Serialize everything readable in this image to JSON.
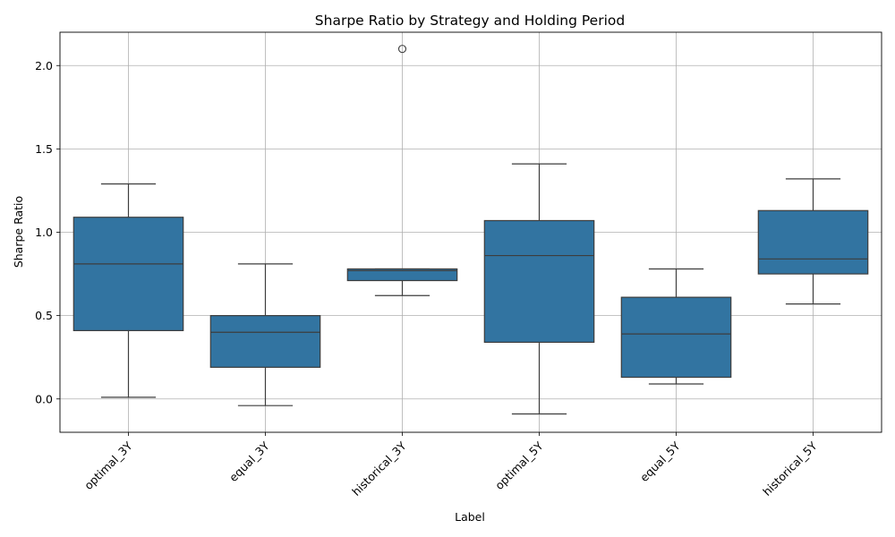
{
  "chart_data": {
    "type": "box",
    "title": "Sharpe Ratio by Strategy and Holding Period",
    "xlabel": "Label",
    "ylabel": "Sharpe Ratio",
    "ylim": [
      -0.2,
      2.2
    ],
    "yticks": [
      0.0,
      0.5,
      1.0,
      1.5,
      2.0
    ],
    "ytick_labels": [
      "0.0",
      "0.5",
      "1.0",
      "1.5",
      "2.0"
    ],
    "grid": true,
    "box_color": "#3274a1",
    "line_color": "#3d3d3d",
    "categories": [
      "optimal_3Y",
      "equal_3Y",
      "historical_3Y",
      "optimal_5Y",
      "equal_5Y",
      "historical_5Y"
    ],
    "boxes": [
      {
        "label": "optimal_3Y",
        "whisker_low": 0.01,
        "q1": 0.41,
        "median": 0.81,
        "q3": 1.09,
        "whisker_high": 1.29,
        "outliers": []
      },
      {
        "label": "equal_3Y",
        "whisker_low": -0.04,
        "q1": 0.19,
        "median": 0.4,
        "q3": 0.5,
        "whisker_high": 0.81,
        "outliers": []
      },
      {
        "label": "historical_3Y",
        "whisker_low": 0.62,
        "q1": 0.71,
        "median": 0.77,
        "q3": 0.78,
        "whisker_high": 0.78,
        "outliers": [
          2.1
        ]
      },
      {
        "label": "optimal_5Y",
        "whisker_low": -0.09,
        "q1": 0.34,
        "median": 0.86,
        "q3": 1.07,
        "whisker_high": 1.41,
        "outliers": []
      },
      {
        "label": "equal_5Y",
        "whisker_low": 0.09,
        "q1": 0.13,
        "median": 0.39,
        "q3": 0.61,
        "whisker_high": 0.78,
        "outliers": []
      },
      {
        "label": "historical_5Y",
        "whisker_low": 0.57,
        "q1": 0.75,
        "median": 0.84,
        "q3": 1.13,
        "whisker_high": 1.32,
        "outliers": []
      }
    ]
  }
}
